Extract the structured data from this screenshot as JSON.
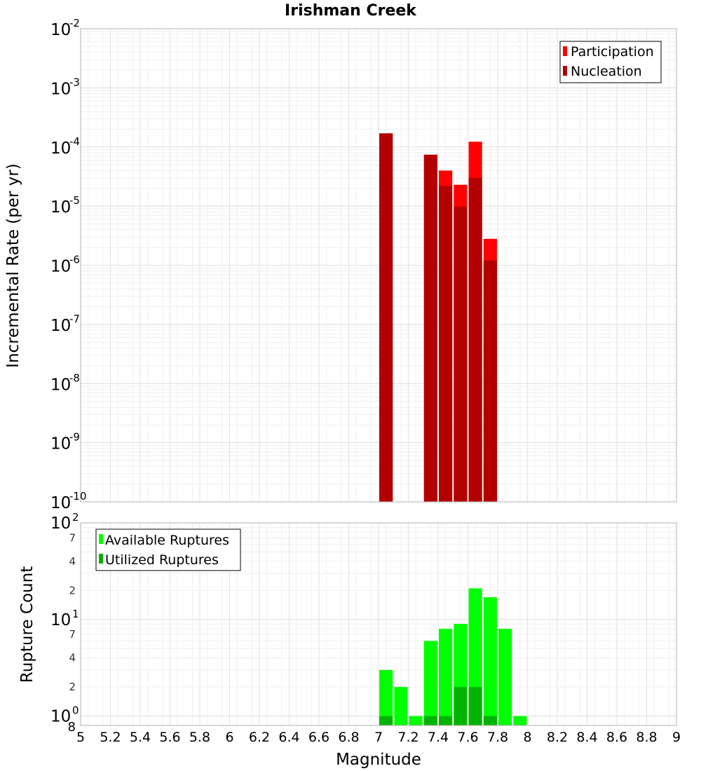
{
  "chart_data": [
    {
      "type": "bar",
      "title": "Irishman Creek",
      "xlabel": "",
      "ylabel": "Incremental Rate (per yr)",
      "yscale": "log",
      "ylim": [
        1e-10,
        0.01
      ],
      "xlim": [
        5,
        9
      ],
      "grid": true,
      "legend_position": "top-right",
      "y_tick_labels": [
        {
          "base": "10",
          "exp": "-2"
        },
        {
          "base": "10",
          "exp": "-3"
        },
        {
          "base": "10",
          "exp": "-4"
        },
        {
          "base": "10",
          "exp": "-5"
        },
        {
          "base": "10",
          "exp": "-6"
        },
        {
          "base": "10",
          "exp": "-7"
        },
        {
          "base": "10",
          "exp": "-8"
        },
        {
          "base": "10",
          "exp": "-9"
        },
        {
          "base": "10",
          "exp": "-10"
        }
      ],
      "x": [
        7.05,
        7.35,
        7.45,
        7.55,
        7.65,
        7.75
      ],
      "series": [
        {
          "name": "Participation",
          "color": "#ff0000",
          "values": [
            0.00017,
            7.4e-05,
            4e-05,
            2.3e-05,
            0.000123,
            2.8e-06
          ]
        },
        {
          "name": "Nucleation",
          "color": "#b30000",
          "values": [
            0.00017,
            7.4e-05,
            2.2e-05,
            9.8e-06,
            3e-05,
            1.2e-06
          ]
        }
      ]
    },
    {
      "type": "bar",
      "title": "",
      "xlabel": "Magnitude",
      "ylabel": "Rupture Count",
      "yscale": "log",
      "ylim": [
        0.8,
        100
      ],
      "xlim": [
        5,
        9
      ],
      "grid": true,
      "legend_position": "top-left",
      "x_tick_labels": [
        "5",
        "5.2",
        "5.4",
        "5.6",
        "5.8",
        "6",
        "6.2",
        "6.4",
        "6.6",
        "6.8",
        "7",
        "7.2",
        "7.4",
        "7.6",
        "7.8",
        "8",
        "8.2",
        "8.4",
        "8.6",
        "8.8",
        "9"
      ],
      "y_major_labels": [
        {
          "base": "10",
          "exp": "2"
        },
        {
          "base": "10",
          "exp": "1"
        },
        {
          "base": "10",
          "exp": "0"
        }
      ],
      "y_minor_labels": [
        "7",
        "4",
        "2",
        "7",
        "4",
        "2",
        "8"
      ],
      "x": [
        7.05,
        7.15,
        7.25,
        7.35,
        7.45,
        7.55,
        7.65,
        7.75,
        7.85,
        7.95
      ],
      "series": [
        {
          "name": "Available Ruptures",
          "color": "#00ff00",
          "values": [
            3,
            2,
            1,
            6,
            8,
            9,
            21,
            17,
            8,
            1
          ]
        },
        {
          "name": "Utilized Ruptures",
          "color": "#00b300",
          "values": [
            1,
            0,
            0,
            1,
            1,
            2,
            2,
            1,
            0,
            0
          ]
        }
      ]
    }
  ]
}
